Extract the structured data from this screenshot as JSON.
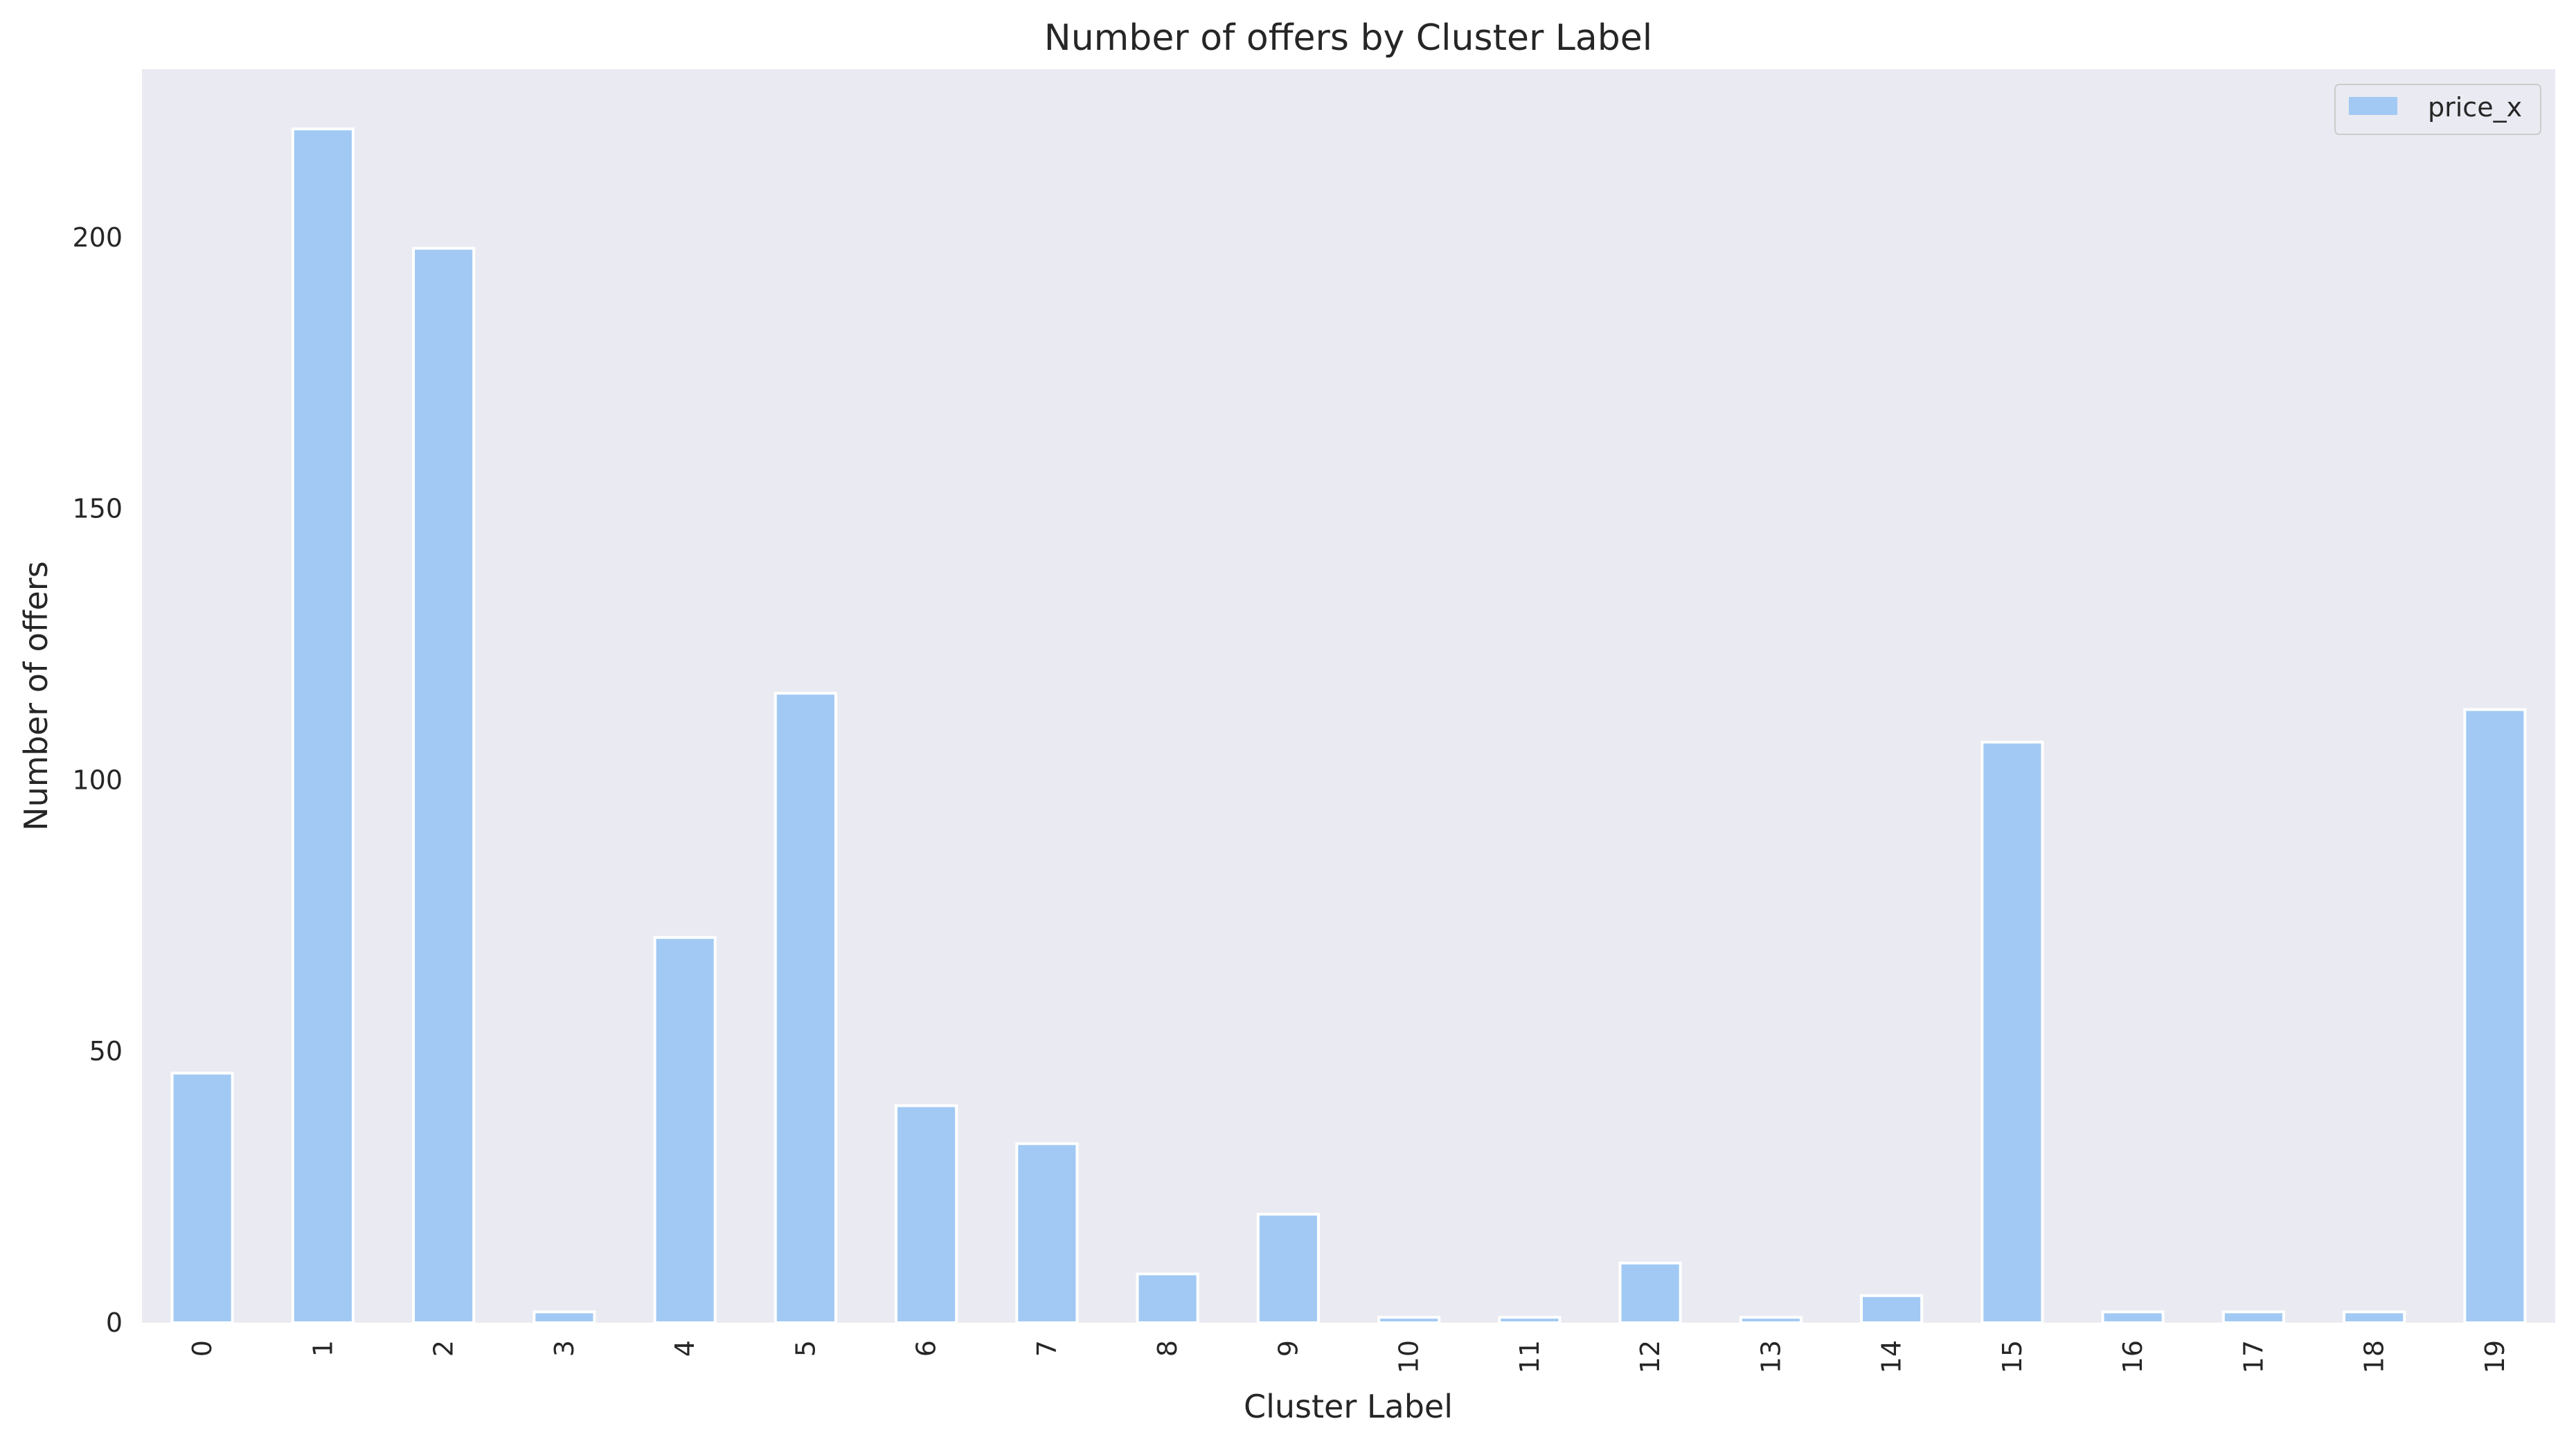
{
  "chart_data": {
    "type": "bar",
    "title": "Number of offers by Cluster Label",
    "xlabel": "Cluster Label",
    "ylabel": "Number of offers",
    "categories": [
      "0",
      "1",
      "2",
      "3",
      "4",
      "5",
      "6",
      "7",
      "8",
      "9",
      "10",
      "11",
      "12",
      "13",
      "14",
      "15",
      "16",
      "17",
      "18",
      "19"
    ],
    "series": [
      {
        "name": "price_x",
        "values": [
          46,
          220,
          198,
          2,
          71,
          116,
          40,
          33,
          9,
          20,
          1,
          1,
          11,
          1,
          5,
          107,
          2,
          2,
          2,
          113
        ],
        "color": "#a1c9f4"
      }
    ],
    "ylim": [
      0,
      231
    ],
    "yticks": [
      0,
      50,
      100,
      150,
      200
    ],
    "grid": false,
    "legend": "top-right",
    "background": "#eaeaf2"
  }
}
